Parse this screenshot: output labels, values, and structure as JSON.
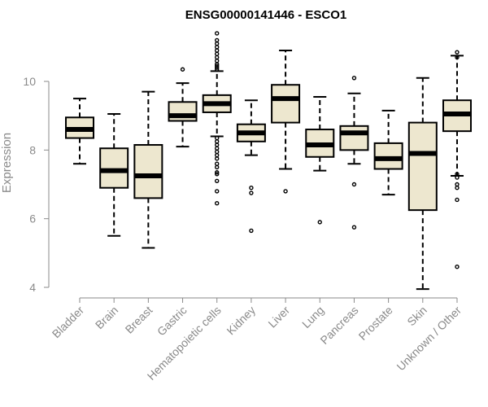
{
  "chart_data": {
    "type": "box",
    "title": "ENSG00000141446 - ESCO1",
    "xlabel": "",
    "ylabel": "Expression",
    "ylim": [
      4,
      11.5
    ],
    "yticks": [
      4,
      6,
      8,
      10
    ],
    "box_fill": "#ede7cf",
    "grid": false,
    "categories": [
      "Bladder",
      "Brain",
      "Breast",
      "Gastric",
      "Hematopoietic cells",
      "Kidney",
      "Liver",
      "Lung",
      "Pancreas",
      "Prostate",
      "Skin",
      "Unknown / Other"
    ],
    "boxes": [
      {
        "category": "Bladder",
        "whisker_low": 7.6,
        "q1": 8.35,
        "median": 8.6,
        "q3": 8.95,
        "whisker_high": 9.5,
        "outliers": []
      },
      {
        "category": "Brain",
        "whisker_low": 5.5,
        "q1": 6.9,
        "median": 7.4,
        "q3": 8.05,
        "whisker_high": 9.05,
        "outliers": []
      },
      {
        "category": "Breast",
        "whisker_low": 5.15,
        "q1": 6.6,
        "median": 7.25,
        "q3": 8.15,
        "whisker_high": 9.7,
        "outliers": []
      },
      {
        "category": "Gastric",
        "whisker_low": 8.1,
        "q1": 8.85,
        "median": 9.0,
        "q3": 9.4,
        "whisker_high": 9.95,
        "outliers": [
          10.35
        ]
      },
      {
        "category": "Hematopoietic cells",
        "whisker_low": 8.4,
        "q1": 9.1,
        "median": 9.35,
        "q3": 9.6,
        "whisker_high": 10.3,
        "outliers": [
          11.4,
          11.2,
          11.1,
          11.0,
          10.9,
          10.8,
          10.7,
          10.6,
          10.5,
          10.45,
          10.4,
          10.35,
          8.35,
          8.25,
          8.15,
          8.05,
          7.95,
          7.85,
          7.75,
          7.6,
          7.5,
          7.35,
          7.3,
          7.1,
          6.8,
          6.45
        ]
      },
      {
        "category": "Kidney",
        "whisker_low": 7.85,
        "q1": 8.25,
        "median": 8.5,
        "q3": 8.75,
        "whisker_high": 9.45,
        "outliers": [
          6.9,
          6.75,
          5.65
        ]
      },
      {
        "category": "Liver",
        "whisker_low": 7.45,
        "q1": 8.8,
        "median": 9.5,
        "q3": 9.9,
        "whisker_high": 10.9,
        "outliers": [
          6.8
        ]
      },
      {
        "category": "Lung",
        "whisker_low": 7.4,
        "q1": 7.8,
        "median": 8.15,
        "q3": 8.6,
        "whisker_high": 9.55,
        "outliers": [
          5.9
        ]
      },
      {
        "category": "Pancreas",
        "whisker_low": 7.6,
        "q1": 8.0,
        "median": 8.5,
        "q3": 8.7,
        "whisker_high": 9.65,
        "outliers": [
          10.1,
          7.0,
          5.75
        ]
      },
      {
        "category": "Prostate",
        "whisker_low": 6.7,
        "q1": 7.45,
        "median": 7.75,
        "q3": 8.2,
        "whisker_high": 9.15,
        "outliers": []
      },
      {
        "category": "Skin",
        "whisker_low": 3.95,
        "q1": 6.25,
        "median": 7.9,
        "q3": 8.8,
        "whisker_high": 10.1,
        "outliers": []
      },
      {
        "category": "Unknown / Other",
        "whisker_low": 7.25,
        "q1": 8.55,
        "median": 9.05,
        "q3": 9.45,
        "whisker_high": 10.75,
        "outliers": [
          10.85,
          10.7,
          7.3,
          7.2,
          7.0,
          6.9,
          6.55,
          4.6
        ]
      }
    ]
  }
}
